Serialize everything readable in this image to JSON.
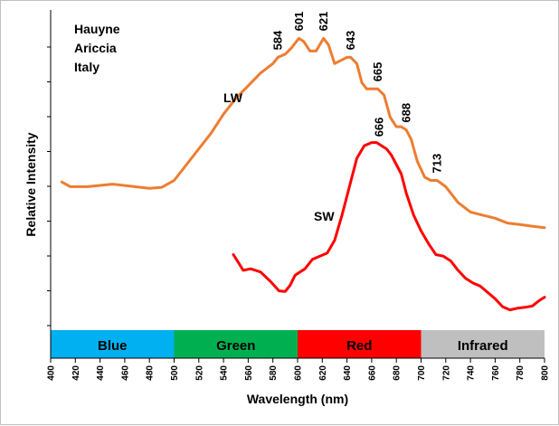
{
  "chart_data": {
    "type": "line",
    "title": "",
    "annotation_lines": [
      "Hauyne",
      "Ariccia",
      "Italy"
    ],
    "xlabel": "Wavelength (nm)",
    "ylabel": "Relative Intensity",
    "xlim": [
      400,
      800
    ],
    "x_ticks": [
      400,
      420,
      440,
      460,
      480,
      500,
      520,
      540,
      560,
      580,
      600,
      620,
      640,
      660,
      680,
      700,
      720,
      740,
      760,
      780,
      800
    ],
    "y_ticks_count": 9,
    "grid": false,
    "legend": "none",
    "bands": [
      {
        "label": "Blue",
        "from": 400,
        "to": 500,
        "color": "#00b0f0"
      },
      {
        "label": "Green",
        "from": 500,
        "to": 600,
        "color": "#00b050"
      },
      {
        "label": "Red",
        "from": 600,
        "to": 700,
        "color": "#ff0000"
      },
      {
        "label": "Infrared",
        "from": 700,
        "to": 800,
        "color": "#bfbfbf"
      }
    ],
    "series": [
      {
        "name": "LW",
        "color": "#ed7d31",
        "x": [
          409,
          416,
          430,
          450,
          468,
          480,
          490,
          500,
          510,
          520,
          530,
          540,
          550,
          560,
          570,
          580,
          584,
          590,
          595,
          601,
          605,
          610,
          615,
          621,
          625,
          630,
          635,
          640,
          643,
          648,
          652,
          656,
          660,
          665,
          670,
          675,
          680,
          684,
          688,
          692,
          697,
          703,
          708,
          713,
          720,
          730,
          740,
          750,
          760,
          770,
          780,
          790,
          800
        ],
        "y": [
          0.455,
          0.44,
          0.44,
          0.448,
          0.44,
          0.435,
          0.438,
          0.46,
          0.51,
          0.56,
          0.61,
          0.67,
          0.72,
          0.76,
          0.8,
          0.83,
          0.85,
          0.86,
          0.88,
          0.91,
          0.9,
          0.87,
          0.87,
          0.91,
          0.89,
          0.83,
          0.84,
          0.85,
          0.85,
          0.83,
          0.77,
          0.75,
          0.75,
          0.75,
          0.73,
          0.66,
          0.63,
          0.63,
          0.62,
          0.59,
          0.52,
          0.47,
          0.46,
          0.46,
          0.44,
          0.39,
          0.36,
          0.35,
          0.34,
          0.325,
          0.32,
          0.315,
          0.31
        ]
      },
      {
        "name": "SW",
        "color": "#ff0000",
        "x": [
          548,
          552,
          556,
          562,
          570,
          578,
          585,
          590,
          594,
          598,
          602,
          606,
          612,
          618,
          624,
          630,
          636,
          642,
          648,
          654,
          660,
          664,
          668,
          672,
          676,
          680,
          684,
          688,
          694,
          700,
          706,
          712,
          718,
          724,
          730,
          736,
          742,
          748,
          754,
          760,
          766,
          772,
          778,
          784,
          790,
          796,
          800
        ],
        "y": [
          0.225,
          0.2,
          0.175,
          0.18,
          0.17,
          0.14,
          0.11,
          0.108,
          0.128,
          0.16,
          0.17,
          0.18,
          0.21,
          0.22,
          0.23,
          0.27,
          0.35,
          0.44,
          0.53,
          0.57,
          0.58,
          0.58,
          0.57,
          0.56,
          0.54,
          0.51,
          0.48,
          0.42,
          0.35,
          0.3,
          0.26,
          0.225,
          0.22,
          0.205,
          0.175,
          0.15,
          0.135,
          0.125,
          0.105,
          0.085,
          0.06,
          0.05,
          0.055,
          0.058,
          0.062,
          0.08,
          0.09
        ]
      }
    ],
    "peak_labels": [
      {
        "series": "LW",
        "x": 584,
        "text": "584"
      },
      {
        "series": "LW",
        "x": 601,
        "text": "601"
      },
      {
        "series": "LW",
        "x": 621,
        "text": "621"
      },
      {
        "series": "LW",
        "x": 643,
        "text": "643"
      },
      {
        "series": "LW",
        "x": 665,
        "text": "665"
      },
      {
        "series": "LW",
        "x": 688,
        "text": "688"
      },
      {
        "series": "LW",
        "x": 713,
        "text": "713"
      },
      {
        "series": "SW",
        "x": 666,
        "text": "666"
      }
    ]
  }
}
